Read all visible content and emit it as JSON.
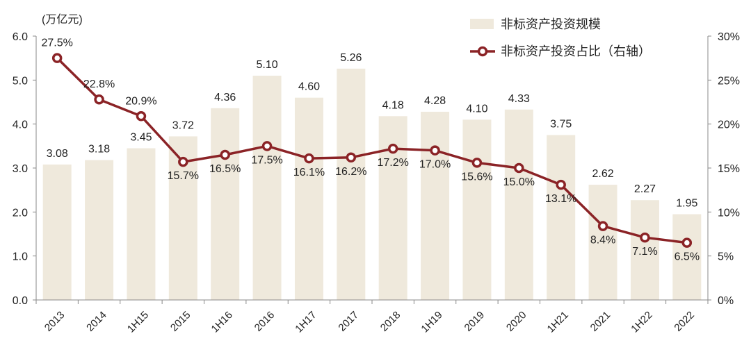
{
  "chart_data": {
    "type": "bar+line",
    "unit_label": "(万亿元)",
    "categories": [
      "2013",
      "2014",
      "1H15",
      "2015",
      "1H16",
      "2016",
      "1H17",
      "2017",
      "2018",
      "1H19",
      "2019",
      "2020",
      "1H21",
      "2021",
      "1H22",
      "2022"
    ],
    "series": [
      {
        "name": "非标资产投资规模",
        "type": "bar",
        "axis": "left",
        "color": "#efe9dc",
        "values": [
          3.08,
          3.18,
          3.45,
          3.72,
          4.36,
          5.1,
          4.6,
          5.26,
          4.18,
          4.28,
          4.1,
          4.33,
          3.75,
          2.62,
          2.27,
          1.95
        ],
        "labels": [
          "3.08",
          "3.18",
          "3.45",
          "3.72",
          "4.36",
          "5.10",
          "4.60",
          "5.26",
          "4.18",
          "4.28",
          "4.10",
          "4.33",
          "3.75",
          "2.62",
          "2.27",
          "1.95"
        ]
      },
      {
        "name": "非标资产投资占比（右轴）",
        "type": "line",
        "axis": "right",
        "color": "#8b2326",
        "values": [
          27.5,
          22.8,
          20.9,
          15.7,
          16.5,
          17.5,
          16.1,
          16.2,
          17.2,
          17.0,
          15.6,
          15.0,
          13.1,
          8.4,
          7.1,
          6.5
        ],
        "labels": [
          "27.5%",
          "22.8%",
          "20.9%",
          "15.7%",
          "16.5%",
          "17.5%",
          "16.1%",
          "16.2%",
          "17.2%",
          "17.0%",
          "15.6%",
          "15.0%",
          "13.1%",
          "8.4%",
          "7.1%",
          "6.5%"
        ]
      }
    ],
    "y_left": {
      "min": 0,
      "max": 6,
      "ticks": [
        "0.0",
        "1.0",
        "2.0",
        "3.0",
        "4.0",
        "5.0",
        "6.0"
      ]
    },
    "y_right": {
      "min": 0,
      "max": 30,
      "ticks": [
        "0%",
        "5%",
        "10%",
        "15%",
        "20%",
        "25%",
        "30%"
      ]
    },
    "legend_position": "top-right"
  }
}
